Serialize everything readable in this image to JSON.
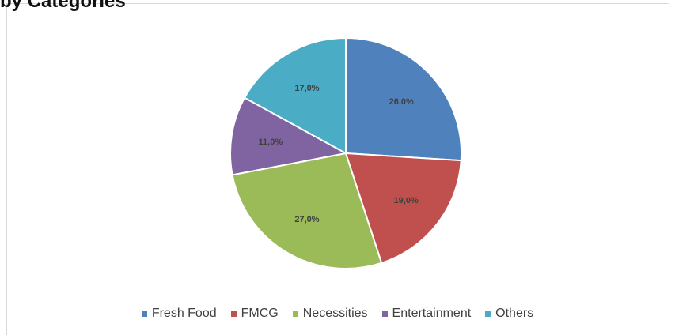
{
  "header": {
    "title": "by Categories"
  },
  "chart_data": {
    "type": "pie",
    "categories": [
      "Fresh Food",
      "FMCG",
      "Necessities",
      "Entertainment",
      "Others"
    ],
    "values": [
      26.0,
      19.0,
      27.0,
      11.0,
      17.0
    ],
    "labels": [
      "26,0%",
      "19,0%",
      "27,0%",
      "11,0%",
      "17,0%"
    ],
    "colors": [
      "#4f81bd",
      "#c0504d",
      "#9bbb59",
      "#8064a2",
      "#4bacc6"
    ],
    "legend": "bottom"
  }
}
